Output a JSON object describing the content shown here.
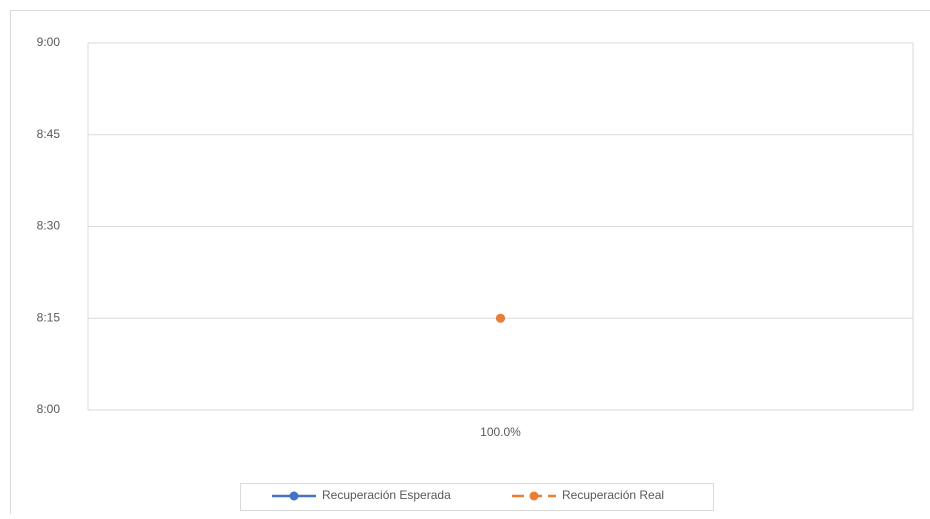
{
  "chart_data": {
    "type": "line",
    "categories": [
      "100.0%"
    ],
    "series": [
      {
        "name": "Recuperación Esperada",
        "color": "#4472c4",
        "dash": false,
        "values": [
          495
        ]
      },
      {
        "name": "Recuperación Real",
        "color": "#ed7d31",
        "dash": true,
        "values": [
          495
        ]
      }
    ],
    "ylim": [
      480,
      540
    ],
    "yticks": [
      {
        "value": 480,
        "label": "8:00"
      },
      {
        "value": 495,
        "label": "8:15"
      },
      {
        "value": 510,
        "label": "8:30"
      },
      {
        "value": 525,
        "label": "8:45"
      },
      {
        "value": 540,
        "label": "9:00"
      }
    ],
    "grid": true,
    "legend": "bottom"
  }
}
